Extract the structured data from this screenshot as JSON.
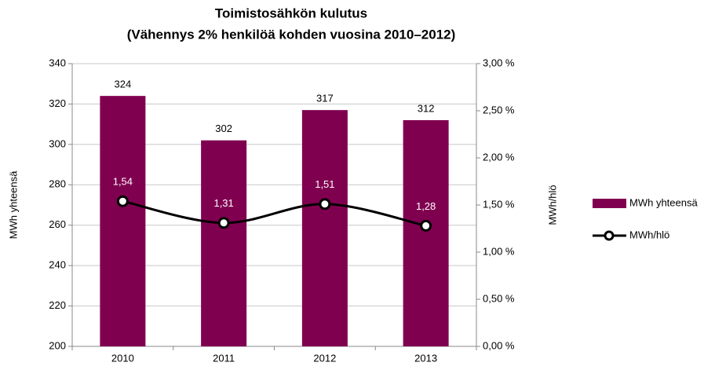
{
  "chart_data": {
    "type": "bar_line",
    "title": "Toimistosähkön kulutus",
    "subtitle": "(Vähennys 2% henkilöä kohden vuosina 2010–2012)",
    "ylabel": "MWh yhteensä",
    "y2label": "MWh/hlö",
    "categories": [
      "2010",
      "2011",
      "2012",
      "2013"
    ],
    "series": [
      {
        "name": "MWh yhteensä",
        "type": "bar",
        "color": "#800050",
        "values": [
          324,
          302,
          317,
          312
        ]
      },
      {
        "name": "MWh/hlö",
        "type": "line",
        "axis": "y2",
        "color": "#000000",
        "values": [
          1.54,
          1.31,
          1.51,
          1.28
        ],
        "value_labels": [
          "1,54",
          "1,31",
          "1,51",
          "1,28"
        ]
      }
    ],
    "ylim": [
      200,
      340
    ],
    "yticks": [
      200,
      220,
      240,
      260,
      280,
      300,
      320,
      340
    ],
    "y2lim": [
      0,
      3
    ],
    "y2ticks": [
      {
        "value": 0,
        "label": "0,00 %"
      },
      {
        "value": 0.5,
        "label": "0,50 %"
      },
      {
        "value": 1,
        "label": "1,00 %"
      },
      {
        "value": 1.5,
        "label": "1,50 %"
      },
      {
        "value": 2,
        "label": "2,00 %"
      },
      {
        "value": 2.5,
        "label": "2,50 %"
      },
      {
        "value": 3,
        "label": "3,00 %"
      }
    ],
    "grid": true,
    "legend": "right"
  }
}
